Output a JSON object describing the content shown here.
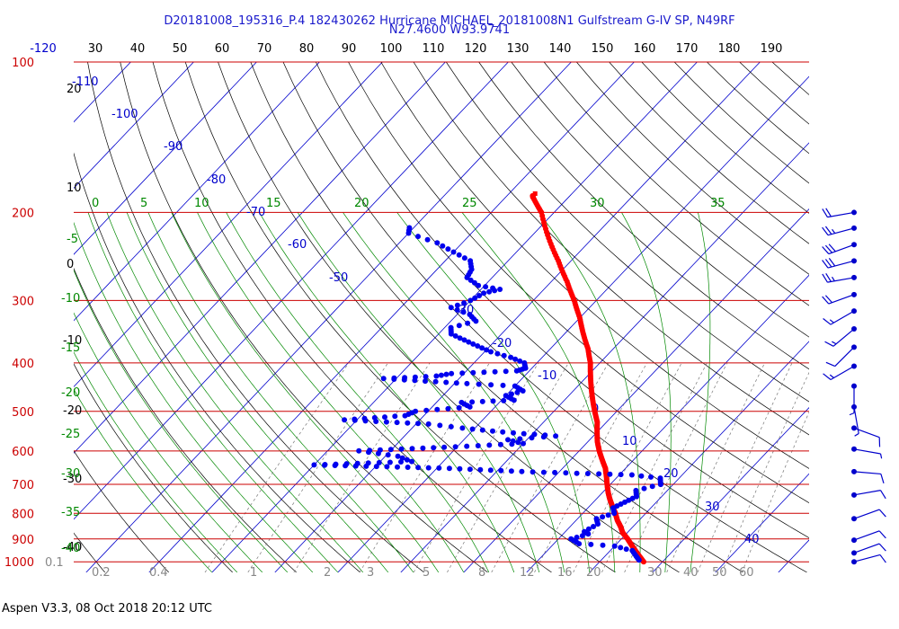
{
  "title_line1": "D20181008_195316_P.4 182430262 Hurricane MICHAEL_20181008N1 Gulfstream G-IV SP, N49RF",
  "title_line2": "N27.4600 W93.9741",
  "footer": "Aspen V3.3, 08 Oct 2018  20:12 UTC",
  "colors": {
    "isobar": "#cc0000",
    "isotherm": "#0000cc",
    "dry_adiabat": "#000000",
    "moist_adiabat": "#008800",
    "mixing_ratio": "#777777",
    "temperature": "#ff0000",
    "dewpoint": "#0000ee",
    "wind": "#0000cc"
  },
  "chart_data": {
    "type": "skew-t log-p",
    "top_axis": {
      "label": "",
      "ticks": [
        "-120",
        "30",
        "40",
        "50",
        "60",
        "70",
        "80",
        "90",
        "100",
        "110",
        "120",
        "130",
        "140",
        "150",
        "160",
        "170",
        "180",
        "190"
      ]
    },
    "left_axis": {
      "label": "",
      "pressure_ticks": [
        "100",
        "200",
        "300",
        "400",
        "500",
        "600",
        "700",
        "800",
        "900",
        "1000"
      ]
    },
    "dry_adiabat_labels": [
      "20",
      "10",
      "0",
      "-10",
      "-20",
      "-30",
      "-40"
    ],
    "isotherm_labels": [
      "-110",
      "-100",
      "-90",
      "-80",
      "-70",
      "-60",
      "-50",
      "-30",
      "-20",
      "-10",
      "0",
      "10",
      "20",
      "30",
      "40"
    ],
    "moist_adiabat_labels": [
      "0",
      "5",
      "10",
      "15",
      "20",
      "25",
      "30",
      "35",
      "-5",
      "-10",
      "-15",
      "-20",
      "-25",
      "-30",
      "-35",
      "-40"
    ],
    "mixing_ratio_labels": [
      "0.1",
      "0.2",
      "0.4",
      "1",
      "2",
      "3",
      "5",
      "8",
      "12",
      "16",
      "20",
      "30",
      "40",
      "50",
      "60"
    ],
    "temperature_profile": [
      [
        1000,
        27
      ],
      [
        975,
        25.5
      ],
      [
        950,
        24
      ],
      [
        925,
        22.5
      ],
      [
        900,
        21
      ],
      [
        875,
        19.3
      ],
      [
        850,
        18
      ],
      [
        825,
        16.5
      ],
      [
        800,
        15.2
      ],
      [
        775,
        13.7
      ],
      [
        750,
        12.2
      ],
      [
        725,
        10.8
      ],
      [
        700,
        9.5
      ],
      [
        675,
        8.2
      ],
      [
        650,
        6.8
      ],
      [
        625,
        5
      ],
      [
        600,
        3.2
      ],
      [
        575,
        1.5
      ],
      [
        550,
        0
      ],
      [
        525,
        -1.5
      ],
      [
        500,
        -3.5
      ],
      [
        475,
        -5.5
      ],
      [
        450,
        -7.5
      ],
      [
        425,
        -9.5
      ],
      [
        400,
        -11.5
      ],
      [
        375,
        -14
      ],
      [
        350,
        -17
      ],
      [
        325,
        -20
      ],
      [
        300,
        -23.5
      ],
      [
        275,
        -27.5
      ],
      [
        250,
        -32
      ],
      [
        225,
        -37
      ],
      [
        200,
        -42
      ],
      [
        187,
        -45.5
      ],
      [
        185,
        -46
      ]
    ],
    "dewpoint_profile": [
      [
        992,
        26
      ],
      [
        975,
        25
      ],
      [
        950,
        23.5
      ],
      [
        930,
        20
      ],
      [
        920,
        14
      ],
      [
        900,
        12
      ],
      [
        880,
        14
      ],
      [
        870,
        13
      ],
      [
        840,
        14
      ],
      [
        820,
        13
      ],
      [
        800,
        15
      ],
      [
        780,
        14
      ],
      [
        760,
        15
      ],
      [
        740,
        16
      ],
      [
        720,
        15
      ],
      [
        700,
        18
      ],
      [
        680,
        17
      ],
      [
        670,
        12
      ],
      [
        660,
        -6
      ],
      [
        650,
        -18
      ],
      [
        640,
        -40
      ],
      [
        630,
        -25
      ],
      [
        615,
        -28
      ],
      [
        600,
        -35
      ],
      [
        590,
        -22
      ],
      [
        580,
        -10
      ],
      [
        570,
        -13
      ],
      [
        560,
        -6
      ],
      [
        550,
        -15
      ],
      [
        540,
        -22
      ],
      [
        530,
        -28
      ],
      [
        520,
        -42
      ],
      [
        510,
        -33
      ],
      [
        500,
        -32
      ],
      [
        490,
        -24
      ],
      [
        480,
        -26
      ],
      [
        475,
        -18
      ],
      [
        465,
        -20
      ],
      [
        455,
        -18
      ],
      [
        445,
        -20
      ],
      [
        440,
        -28
      ],
      [
        430,
        -42
      ],
      [
        425,
        -34
      ],
      [
        420,
        -32
      ],
      [
        415,
        -22
      ],
      [
        410,
        -21
      ],
      [
        400,
        -22
      ],
      [
        390,
        -25
      ],
      [
        380,
        -29
      ],
      [
        370,
        -32
      ],
      [
        360,
        -35
      ],
      [
        350,
        -38
      ],
      [
        340,
        -39
      ],
      [
        330,
        -36
      ],
      [
        320,
        -38
      ],
      [
        310,
        -42
      ],
      [
        300,
        -40
      ],
      [
        290,
        -39
      ],
      [
        285,
        -37
      ],
      [
        280,
        -41
      ],
      [
        270,
        -44
      ],
      [
        260,
        -44.5
      ],
      [
        250,
        -46
      ],
      [
        240,
        -50
      ],
      [
        230,
        -54
      ],
      [
        220,
        -60
      ],
      [
        212,
        -61
      ]
    ],
    "wind_barbs": [
      {
        "pressure": 200,
        "speed_kt": 20,
        "direction_deg": 260
      },
      {
        "pressure": 215,
        "speed_kt": 25,
        "direction_deg": 255
      },
      {
        "pressure": 232,
        "speed_kt": 30,
        "direction_deg": 250
      },
      {
        "pressure": 250,
        "speed_kt": 30,
        "direction_deg": 255
      },
      {
        "pressure": 270,
        "speed_kt": 25,
        "direction_deg": 260
      },
      {
        "pressure": 292,
        "speed_kt": 20,
        "direction_deg": 250
      },
      {
        "pressure": 315,
        "speed_kt": 15,
        "direction_deg": 240
      },
      {
        "pressure": 342,
        "speed_kt": 15,
        "direction_deg": 230
      },
      {
        "pressure": 372,
        "speed_kt": 10,
        "direction_deg": 225
      },
      {
        "pressure": 406,
        "speed_kt": 15,
        "direction_deg": 240
      },
      {
        "pressure": 445,
        "speed_kt": 5,
        "direction_deg": 180
      },
      {
        "pressure": 490,
        "speed_kt": 5,
        "direction_deg": 170
      },
      {
        "pressure": 540,
        "speed_kt": 10,
        "direction_deg": 110
      },
      {
        "pressure": 595,
        "speed_kt": 5,
        "direction_deg": 100
      },
      {
        "pressure": 660,
        "speed_kt": 10,
        "direction_deg": 95
      },
      {
        "pressure": 735,
        "speed_kt": 10,
        "direction_deg": 80
      },
      {
        "pressure": 820,
        "speed_kt": 10,
        "direction_deg": 70
      },
      {
        "pressure": 905,
        "speed_kt": 10,
        "direction_deg": 70
      },
      {
        "pressure": 960,
        "speed_kt": 10,
        "direction_deg": 70
      },
      {
        "pressure": 1000,
        "speed_kt": 10,
        "direction_deg": 75
      }
    ],
    "grid": true
  }
}
